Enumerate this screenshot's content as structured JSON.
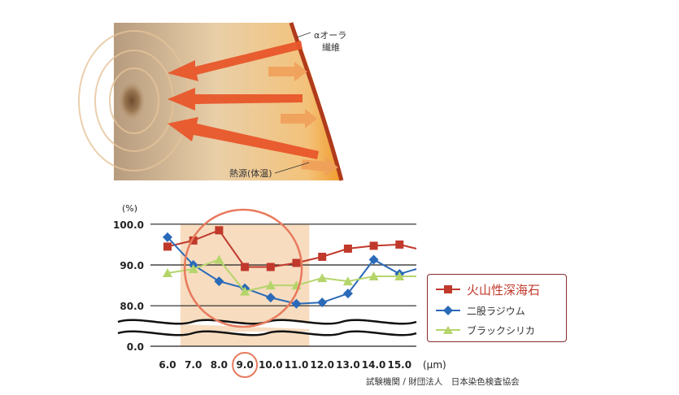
{
  "illustration": {
    "fiber_label_line1": "αオーラ",
    "fiber_label_line2": "繊維",
    "heat_source_label": "熱源(体温)",
    "colors": {
      "bg_warm": "#f2b25a",
      "arrow": "#e8562a",
      "fiber": "#b03a1c"
    }
  },
  "chart_data": {
    "type": "line",
    "y_unit_label": "(%)",
    "x_unit_label": "(μm)",
    "ylim": [
      0,
      100
    ],
    "yticks": [
      "100.0",
      "90.0",
      "80.0",
      "0.0"
    ],
    "y_axis_break": true,
    "x": [
      "6.0",
      "7.0",
      "8.0",
      "9.0",
      "10.0",
      "11.0",
      "12.0",
      "13.0",
      "14.0",
      "15.0"
    ],
    "highlighted_x": "9.0",
    "highlight_band_range": [
      6.5,
      11.5
    ],
    "legend_position": "right",
    "series": [
      {
        "name": "火山性深海石",
        "marker": "square",
        "color": "#c0392b",
        "values": [
          94.5,
          96.0,
          98.5,
          89.5,
          89.5,
          90.5,
          92.0,
          94.0,
          94.7,
          95.0
        ],
        "next": 94.0
      },
      {
        "name": "二股ラジウム",
        "marker": "diamond",
        "color": "#2a6ab8",
        "values": [
          96.8,
          90.0,
          86.0,
          84.3,
          82.0,
          80.5,
          80.8,
          83.0,
          91.3,
          87.8
        ],
        "next": 89.0
      },
      {
        "name": "ブラックシリカ",
        "marker": "triangle",
        "color": "#b5d56b",
        "values": [
          88.0,
          89.0,
          91.3,
          83.5,
          85.0,
          85.0,
          86.8,
          86.0,
          87.2,
          87.2
        ],
        "next": 87.2
      }
    ],
    "colors": {
      "band": "#f7dcc0",
      "circle": "#e87a5d",
      "grid": "#222222"
    }
  },
  "credit": "試験機関 / 財団法人　日本染色検査協会"
}
